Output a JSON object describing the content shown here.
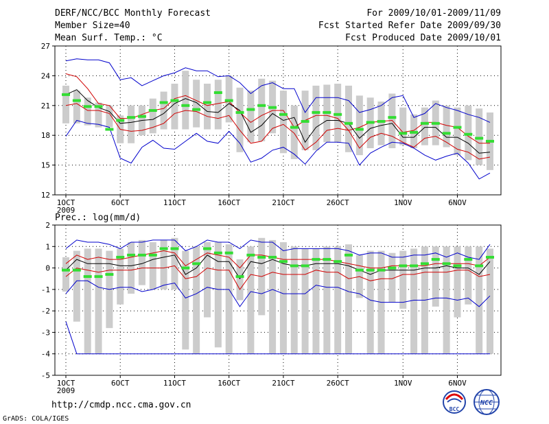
{
  "header": {
    "title": "DERF/NCC/BCC Monthly Forecast",
    "member_size": "Member Size=40",
    "variable": "Mean Surf. Temp.: °C",
    "period": "For 2009/10/01-2009/11/09",
    "start_date": "Fcst Started Refer Date 2009/09/30",
    "produced_date": "Fcst Produced Date 2009/10/01"
  },
  "footer": {
    "url": "http://cmdp.ncc.cma.gov.cn",
    "credit": "GrADS: COLA/IGES",
    "logo_bcc": "BCC",
    "logo_ncc": "NCC"
  },
  "colors": {
    "box": "#cccccc",
    "median": "#000000",
    "quartile": "#d00000",
    "extreme": "#0000cc",
    "green": "#33dd33",
    "grid": "#000000"
  },
  "chart_data": [
    {
      "type": "line",
      "title": "Mean Surf. Temp.: °C",
      "days": [
        1,
        2,
        3,
        4,
        5,
        6,
        7,
        8,
        9,
        10,
        11,
        12,
        13,
        14,
        15,
        16,
        17,
        18,
        19,
        20,
        21,
        22,
        23,
        24,
        25,
        26,
        27,
        28,
        29,
        30,
        31,
        32,
        33,
        34,
        35,
        36,
        37,
        38,
        39,
        40
      ],
      "x_ticks": [
        {
          "day": 1,
          "label": "1OCT",
          "sub": "2009"
        },
        {
          "day": 6,
          "label": "6OCT"
        },
        {
          "day": 11,
          "label": "11OCT"
        },
        {
          "day": 16,
          "label": "16OCT"
        },
        {
          "day": 21,
          "label": "21OCT"
        },
        {
          "day": 26,
          "label": "26OCT"
        },
        {
          "day": 32,
          "label": "1NOV"
        },
        {
          "day": 37,
          "label": "6NOV"
        }
      ],
      "y_ticks": [
        12,
        15,
        18,
        21,
        24,
        27
      ],
      "ylim": [
        12,
        27
      ],
      "series": [
        {
          "name": "box_top",
          "values": [
            23,
            22.5,
            21.8,
            21.3,
            21,
            20,
            21,
            21,
            21.7,
            22.4,
            23.2,
            24.5,
            23.6,
            23.2,
            23.6,
            24,
            22.8,
            22.5,
            23.7,
            23.5,
            22.5,
            21,
            22.5,
            23,
            23.1,
            23.2,
            23,
            22,
            21.8,
            21.4,
            22.2,
            20.8,
            20.1,
            20.8,
            21.5,
            21,
            20.8,
            21,
            20.7,
            20.3
          ]
        },
        {
          "name": "box_bottom",
          "values": [
            19.2,
            19.2,
            19,
            18.8,
            18.8,
            17.2,
            17.2,
            18,
            18.2,
            18.6,
            18.6,
            18.6,
            18.8,
            18.6,
            18.6,
            19.3,
            16.3,
            17.3,
            17.4,
            18.2,
            16.2,
            15.6,
            16.5,
            16.5,
            17.3,
            17.3,
            16.3,
            16,
            16.7,
            17,
            16.7,
            17,
            16.7,
            17,
            17,
            16.8,
            16,
            15.5,
            15,
            14.5
          ]
        },
        {
          "name": "max",
          "values": [
            25.5,
            25.7,
            25.6,
            25.6,
            25.3,
            23.6,
            23.8,
            23,
            23.5,
            24,
            24.3,
            24.8,
            24.5,
            24.5,
            23.9,
            24,
            23.3,
            22.2,
            23,
            23.3,
            22.7,
            22.7,
            20.3,
            21.8,
            21.8,
            21.8,
            21.5,
            20.3,
            20.6,
            21,
            21.8,
            22,
            19.8,
            20.2,
            21.2,
            20.8,
            20.5,
            20.1,
            19.8,
            19.3
          ]
        },
        {
          "name": "q3",
          "values": [
            24.2,
            23.9,
            22.7,
            21.2,
            21,
            19.7,
            19.7,
            20.1,
            20.5,
            20.7,
            21.7,
            22,
            21.5,
            21,
            21.2,
            21.4,
            20.3,
            19.3,
            20,
            20.5,
            20.5,
            18.8,
            19.5,
            20,
            20,
            19.7,
            18.5,
            18.8,
            19.3,
            19.4,
            19.5,
            18.3,
            18.5,
            19.3,
            19.3,
            19,
            18.8,
            17.9,
            17.2,
            17.2
          ]
        },
        {
          "name": "median",
          "values": [
            22.1,
            22.6,
            21.5,
            20.8,
            20.4,
            19.2,
            19.3,
            19.5,
            19.6,
            20.2,
            21.2,
            21.7,
            21.3,
            20.4,
            20.3,
            21.2,
            20.5,
            18.3,
            19,
            20.2,
            19.5,
            19.8,
            17.3,
            18.8,
            19.5,
            19.5,
            19.2,
            17.7,
            18.7,
            19,
            19.2,
            17.8,
            17.8,
            18.8,
            18.8,
            17.8,
            17.8,
            17.2,
            16.2,
            16.3
          ]
        },
        {
          "name": "q1",
          "values": [
            21,
            21.2,
            20.5,
            20.5,
            20.2,
            18.6,
            18.4,
            18.5,
            18.8,
            19.2,
            20.2,
            20.5,
            20.4,
            19.9,
            19.7,
            20,
            18.5,
            17.2,
            17.4,
            18.7,
            19.1,
            18.2,
            16.5,
            17.3,
            18.5,
            18.7,
            18.5,
            16.7,
            17.8,
            18.2,
            17.9,
            17.3,
            16.8,
            17.7,
            17.9,
            17.3,
            16.6,
            16.3,
            15.6,
            15.8
          ]
        },
        {
          "name": "min",
          "values": [
            17.9,
            19.5,
            19.2,
            19.1,
            18.8,
            15.7,
            15.2,
            16.8,
            17.5,
            16.7,
            16.6,
            17.4,
            18.2,
            17.4,
            17.2,
            18.4,
            17.2,
            15.3,
            15.7,
            16.5,
            16.8,
            16.1,
            15.1,
            16.4,
            17.3,
            17.3,
            17.2,
            15,
            16.2,
            16.8,
            17.3,
            17.2,
            16.7,
            16,
            15.5,
            15.9,
            16.2,
            15.2,
            13.6,
            14.2
          ]
        },
        {
          "name": "obs_green",
          "values": [
            22.1,
            21.5,
            20.9,
            20.9,
            18.6,
            19.5,
            19.8,
            19.9,
            20.5,
            21.3,
            21.5,
            21,
            20.6,
            21.3,
            22.3,
            21.5,
            20.3,
            20.6,
            21,
            20.8,
            20.1,
            18.8,
            19.4,
            20.3,
            20.3,
            20.1,
            19.2,
            18.6,
            19.3,
            19.4,
            19.8,
            18.2,
            18.3,
            19.2,
            19.2,
            18.2,
            18.8,
            18.1,
            17.7,
            17.4
          ]
        }
      ]
    },
    {
      "type": "line",
      "title": "Prec.: log(mm/d)",
      "days": [
        1,
        2,
        3,
        4,
        5,
        6,
        7,
        8,
        9,
        10,
        11,
        12,
        13,
        14,
        15,
        16,
        17,
        18,
        19,
        20,
        21,
        22,
        23,
        24,
        25,
        26,
        27,
        28,
        29,
        30,
        31,
        32,
        33,
        34,
        35,
        36,
        37,
        38,
        39,
        40
      ],
      "x_ticks": [
        {
          "day": 1,
          "label": "1OCT",
          "sub": "2009"
        },
        {
          "day": 6,
          "label": "6OCT"
        },
        {
          "day": 11,
          "label": "11OCT"
        },
        {
          "day": 16,
          "label": "16OCT"
        },
        {
          "day": 21,
          "label": "21OCT"
        },
        {
          "day": 26,
          "label": "26OCT"
        },
        {
          "day": 32,
          "label": "1NOV"
        },
        {
          "day": 37,
          "label": "6NOV"
        }
      ],
      "y_ticks": [
        -5,
        -4,
        -3,
        -2,
        -1,
        0,
        1,
        2
      ],
      "ylim": [
        -5,
        2
      ],
      "series": [
        {
          "name": "box_top",
          "values": [
            0.5,
            0.8,
            0.9,
            0.9,
            0.8,
            0.9,
            1.2,
            1.3,
            1.2,
            1.3,
            1.4,
            0.8,
            1,
            1.2,
            1.2,
            1.1,
            0.4,
            1,
            1.4,
            1.3,
            1.2,
            1,
            0.9,
            0.9,
            1,
            1,
            1.1,
            0.6,
            0.8,
            0.8,
            0.7,
            0.8,
            0.9,
            1,
            1,
            1,
            1,
            1,
            1,
            0.9
          ]
        },
        {
          "name": "box_bottom",
          "values": [
            -1.1,
            -2.5,
            -4,
            -4,
            -2.8,
            -1.7,
            -1.2,
            -0.8,
            -1,
            -1,
            -1,
            -3.8,
            -4,
            -2.3,
            -3.7,
            -4,
            -1.5,
            -4,
            -2.2,
            -4,
            -4,
            -4,
            -4,
            -4,
            -4,
            -4,
            -4,
            -1.4,
            -4,
            -4,
            -1.6,
            -1.9,
            -4,
            -4,
            -1.8,
            -4,
            -2.3,
            -1.7,
            -4,
            -4
          ]
        },
        {
          "name": "max",
          "values": [
            0.9,
            1.3,
            1.2,
            1.2,
            1.1,
            0.9,
            1.2,
            1.2,
            1.3,
            1.3,
            1.3,
            0.8,
            1,
            1.3,
            1.2,
            1.2,
            0.9,
            1.3,
            1.2,
            1.2,
            0.8,
            0.9,
            0.9,
            0.9,
            0.9,
            0.9,
            0.8,
            0.6,
            0.7,
            0.7,
            0.5,
            0.5,
            0.6,
            0.6,
            0.7,
            0.5,
            0.7,
            0.5,
            0.4,
            1.1
          ]
        },
        {
          "name": "q3",
          "values": [
            0.2,
            0.6,
            0.4,
            0.5,
            0.4,
            0.4,
            0.5,
            0.6,
            0.7,
            0.8,
            0.7,
            0.1,
            0.4,
            0.7,
            0.6,
            0.5,
            0,
            0.6,
            0.6,
            0.5,
            0.4,
            0.4,
            0.4,
            0.4,
            0.4,
            0.3,
            0.2,
            0.1,
            0,
            0,
            0.1,
            0.1,
            0.1,
            0.1,
            0.2,
            0.2,
            0.2,
            0.2,
            0.1,
            0.5
          ]
        },
        {
          "name": "median",
          "values": [
            -0.1,
            0.4,
            0.2,
            0.2,
            0.2,
            0.1,
            0.1,
            0.2,
            0.4,
            0.5,
            0.6,
            -0.3,
            0,
            0.6,
            0.3,
            0.3,
            -0.5,
            0.3,
            0.2,
            0.4,
            0.2,
            0.1,
            0.1,
            0.2,
            0.2,
            0.2,
            0.1,
            -0.1,
            -0.3,
            -0.1,
            -0.1,
            -0.1,
            -0.1,
            0,
            0,
            0.1,
            0,
            0,
            -0.3,
            0.3
          ]
        },
        {
          "name": "q1",
          "values": [
            -0.4,
            0,
            -0.1,
            -0.2,
            -0.1,
            -0.1,
            -0.1,
            0,
            0,
            0,
            0.1,
            -0.5,
            -0.4,
            0,
            -0.1,
            -0.1,
            -1,
            -0.3,
            -0.4,
            -0.2,
            -0.3,
            -0.3,
            -0.3,
            -0.1,
            -0.2,
            -0.2,
            -0.5,
            -0.4,
            -0.6,
            -0.5,
            -0.5,
            -0.3,
            -0.3,
            -0.2,
            -0.2,
            -0.2,
            -0.1,
            -0.1,
            -0.4,
            -0.3
          ]
        },
        {
          "name": "min",
          "values": [
            -1.2,
            -0.6,
            -0.6,
            -0.9,
            -1,
            -0.9,
            -0.9,
            -1.1,
            -1,
            -0.8,
            -0.7,
            -1.4,
            -1.2,
            -0.9,
            -1,
            -1,
            -1.8,
            -1.1,
            -1.2,
            -1,
            -1.2,
            -1.2,
            -1.2,
            -0.8,
            -0.9,
            -0.9,
            -1.1,
            -1.2,
            -1.5,
            -1.6,
            -1.6,
            -1.6,
            -1.5,
            -1.5,
            -1.4,
            -1.4,
            -1.5,
            -1.4,
            -1.8,
            -1.3
          ]
        },
        {
          "name": "min_low",
          "values": [
            -2.5,
            -4,
            -4,
            -4,
            -4,
            -4,
            -4,
            -4,
            -4,
            -4,
            -4,
            -4,
            -4,
            -4,
            -4,
            -4,
            -4,
            -4,
            -4,
            -4,
            -4,
            -4,
            -4,
            -4,
            -4,
            -4,
            -4,
            -4,
            -4,
            -4,
            -4,
            -4,
            -4,
            -4,
            -4,
            -4,
            -4,
            -4,
            -4,
            -4
          ]
        },
        {
          "name": "obs_green",
          "values": [
            -0.1,
            -0.1,
            -0.4,
            -0.4,
            -0.3,
            0.5,
            0.6,
            0.6,
            0.6,
            0.9,
            0.9,
            0,
            0.2,
            0.9,
            0.7,
            0.7,
            -0.4,
            0.6,
            0.5,
            0.5,
            0.3,
            0.1,
            0.1,
            0.4,
            0.4,
            0.3,
            0.6,
            -0.1,
            -0.1,
            -0.1,
            0,
            0.1,
            0.1,
            0.2,
            0.4,
            0.2,
            0.1,
            0.4,
            0.1,
            0.5
          ]
        }
      ]
    }
  ]
}
